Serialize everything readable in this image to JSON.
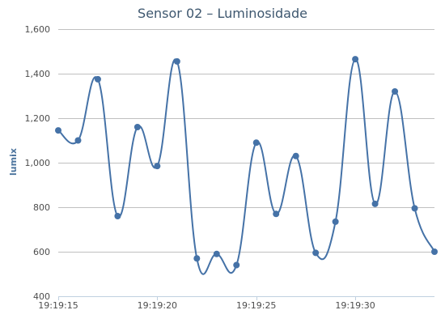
{
  "chart_data": {
    "type": "line",
    "title": "Sensor 02 – Luminosidade",
    "xlabel": "",
    "ylabel": "lumix",
    "ylim": [
      400,
      1600
    ],
    "yticks": [
      400,
      600,
      800,
      1000,
      1200,
      1400,
      1600
    ],
    "ytick_labels": [
      "400",
      "600",
      "800",
      "1,000",
      "1,200",
      "1,400",
      "1,600"
    ],
    "xlim": [
      "19:19:15",
      "19:19:34"
    ],
    "xticks": [
      "19:19:15",
      "19:19:20",
      "19:19:25",
      "19:19:30"
    ],
    "grid": true,
    "legend": false,
    "series": [
      {
        "color": "#4572a7",
        "x": [
          "19:19:15",
          "19:19:16",
          "19:19:17",
          "19:19:18",
          "19:19:19",
          "19:19:20",
          "19:19:21",
          "19:19:22",
          "19:19:23",
          "19:19:24",
          "19:19:25",
          "19:19:26",
          "19:19:27",
          "19:19:28",
          "19:19:29",
          "19:19:30",
          "19:19:31",
          "19:19:32",
          "19:19:33",
          "19:19:34"
        ],
        "values": [
          1145,
          1100,
          1375,
          760,
          1160,
          985,
          1455,
          570,
          590,
          540,
          1090,
          770,
          1030,
          595,
          735,
          1465,
          815,
          1320,
          795,
          600
        ]
      }
    ]
  }
}
